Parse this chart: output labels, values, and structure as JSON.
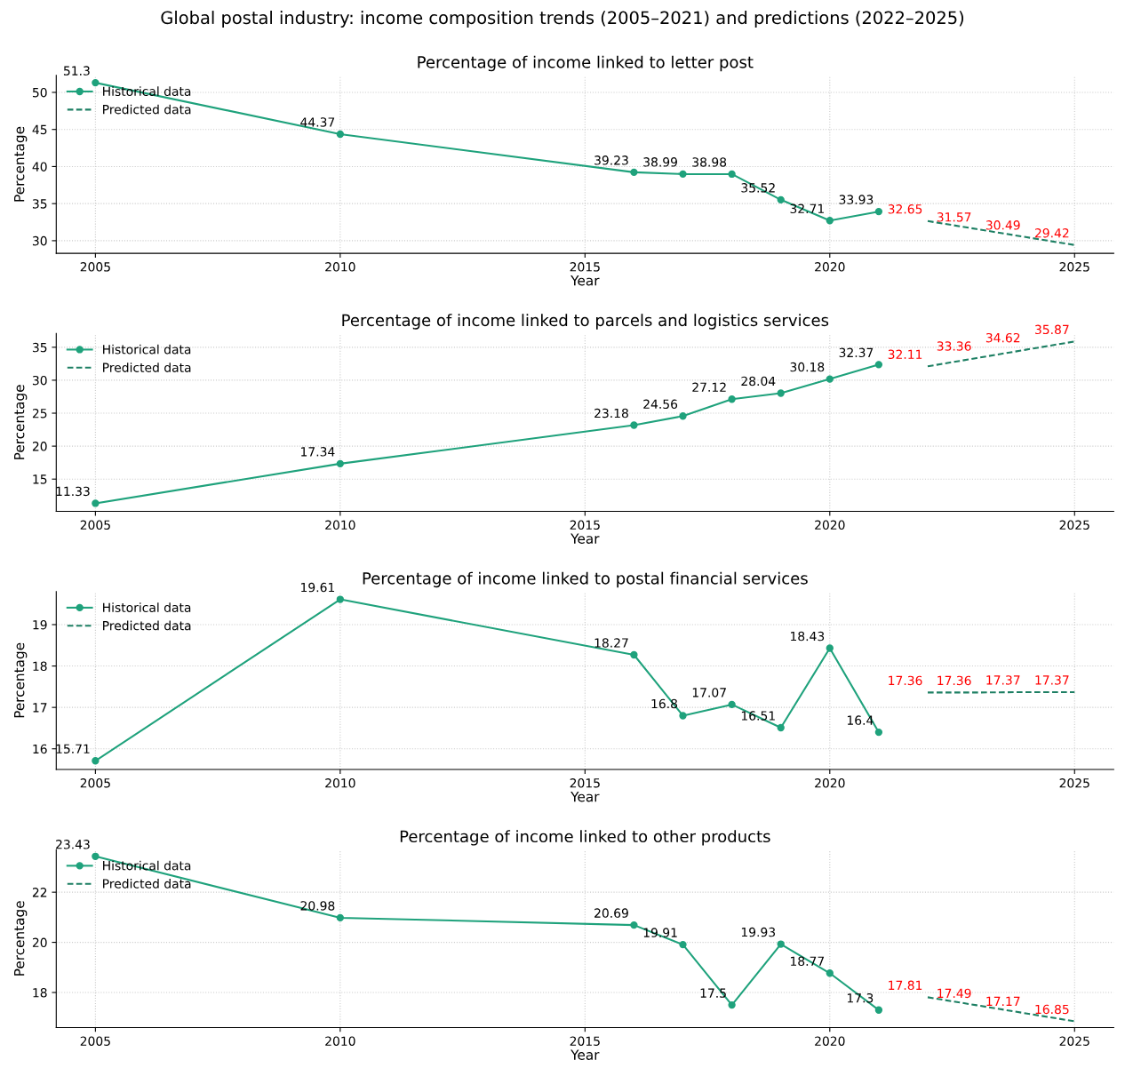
{
  "chart_data": [
    {
      "type": "line",
      "annotations": [
        "Global postal industry: income composition trends (2005–2021) and predictions (2022–2025)"
      ],
      "title": "Percentage of income linked to letter post",
      "xlabel": "Year",
      "ylabel": "Percentage",
      "xlim": [
        2004.2,
        2025.8
      ],
      "xticks": [
        2005,
        2010,
        2015,
        2020,
        2025
      ],
      "ylim": [
        28.3,
        52.3
      ],
      "yticks": [
        30,
        35,
        40,
        45,
        50
      ],
      "grid": true,
      "legend": "top left",
      "data_labels": true,
      "series": [
        {
          "name": "Historical data",
          "color": "#1fa27c",
          "marker": "circle",
          "line_style": "solid",
          "x": [
            2005,
            2010,
            2016,
            2017,
            2018,
            2019,
            2020,
            2021
          ],
          "values": [
            51.3,
            44.37,
            39.23,
            38.99,
            38.98,
            35.52,
            32.71,
            33.93
          ]
        },
        {
          "name": "Predicted data",
          "color": "#1d7f63",
          "marker": "none",
          "line_style": "dashed",
          "x": [
            2022,
            2023,
            2024,
            2025
          ],
          "values": [
            32.65,
            31.57,
            30.49,
            29.42
          ]
        }
      ]
    },
    {
      "type": "line",
      "title": "Percentage of income linked to parcels and logistics services",
      "xlabel": "Year",
      "ylabel": "Percentage",
      "xlim": [
        2004.2,
        2025.8
      ],
      "xticks": [
        2005,
        2010,
        2015,
        2020,
        2025
      ],
      "ylim": [
        10.1,
        37.1
      ],
      "yticks": [
        15,
        20,
        25,
        30,
        35
      ],
      "grid": true,
      "legend": "top left",
      "data_labels": true,
      "series": [
        {
          "name": "Historical data",
          "color": "#1fa27c",
          "marker": "circle",
          "line_style": "solid",
          "x": [
            2005,
            2010,
            2016,
            2017,
            2018,
            2019,
            2020,
            2021
          ],
          "values": [
            11.33,
            17.34,
            23.18,
            24.56,
            27.12,
            28.04,
            30.18,
            32.37
          ]
        },
        {
          "name": "Predicted data",
          "color": "#1d7f63",
          "marker": "none",
          "line_style": "dashed",
          "x": [
            2022,
            2023,
            2024,
            2025
          ],
          "values": [
            32.11,
            33.36,
            34.62,
            35.87
          ]
        }
      ]
    },
    {
      "type": "line",
      "title": "Percentage of income linked to postal financial services",
      "xlabel": "Year",
      "ylabel": "Percentage",
      "xlim": [
        2004.2,
        2025.8
      ],
      "xticks": [
        2005,
        2010,
        2015,
        2020,
        2025
      ],
      "ylim": [
        15.5,
        19.8
      ],
      "yticks": [
        16,
        17,
        18,
        19
      ],
      "grid": true,
      "legend": "top left",
      "data_labels": true,
      "series": [
        {
          "name": "Historical data",
          "color": "#1fa27c",
          "marker": "circle",
          "line_style": "solid",
          "x": [
            2005,
            2010,
            2016,
            2017,
            2018,
            2019,
            2020,
            2021
          ],
          "values": [
            15.71,
            19.61,
            18.27,
            16.8,
            17.07,
            16.51,
            18.43,
            16.4
          ]
        },
        {
          "name": "Predicted data",
          "color": "#1d7f63",
          "marker": "none",
          "line_style": "dashed",
          "x": [
            2022,
            2023,
            2024,
            2025
          ],
          "values": [
            17.36,
            17.36,
            17.37,
            17.37
          ]
        }
      ]
    },
    {
      "type": "line",
      "title": "Percentage of income linked to other products",
      "xlabel": "Year",
      "ylabel": "Percentage",
      "xlim": [
        2004.2,
        2025.8
      ],
      "xticks": [
        2005,
        2010,
        2015,
        2020,
        2025
      ],
      "ylim": [
        16.6,
        23.7
      ],
      "yticks": [
        18,
        20,
        22
      ],
      "grid": true,
      "legend": "top left",
      "data_labels": true,
      "series": [
        {
          "name": "Historical data",
          "color": "#1fa27c",
          "marker": "circle",
          "line_style": "solid",
          "x": [
            2005,
            2010,
            2016,
            2017,
            2018,
            2019,
            2020,
            2021
          ],
          "values": [
            23.43,
            20.98,
            20.69,
            19.91,
            17.5,
            19.93,
            18.77,
            17.3
          ]
        },
        {
          "name": "Predicted data",
          "color": "#1d7f63",
          "marker": "none",
          "line_style": "dashed",
          "x": [
            2022,
            2023,
            2024,
            2025
          ],
          "values": [
            17.81,
            17.49,
            17.17,
            16.85
          ]
        }
      ]
    }
  ]
}
